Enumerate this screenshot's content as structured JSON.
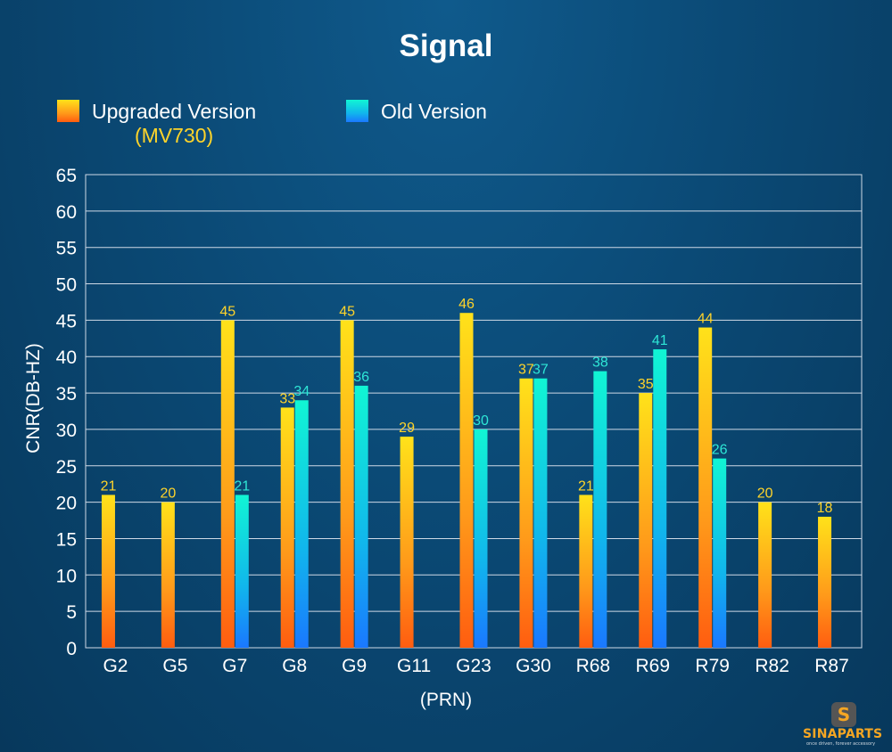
{
  "brand": {
    "name": "SINAPARTS",
    "tagline": "once driven, forever accessory",
    "colors": {
      "accent": "#f5a623"
    }
  },
  "chart_data": {
    "type": "bar",
    "title": "Signal",
    "xlabel": "(PRN)",
    "ylabel": "CNR(DB-HZ)",
    "ylim": [
      0,
      65
    ],
    "yticks": [
      0,
      5,
      10,
      15,
      20,
      25,
      30,
      35,
      40,
      45,
      50,
      55,
      60,
      65
    ],
    "grid": true,
    "legend_position": "top-left",
    "categories": [
      "G2",
      "G5",
      "G7",
      "G8",
      "G9",
      "G11",
      "G23",
      "G30",
      "R68",
      "R69",
      "R79",
      "R82",
      "R87"
    ],
    "series": [
      {
        "name": "Upgraded Version",
        "name_sub": "(MV730)",
        "color_top": "#ffe21a",
        "color_bottom": "#ff5d10",
        "label_color": "#ffd42a",
        "values": [
          21,
          20,
          45,
          33,
          45,
          29,
          46,
          37,
          21,
          35,
          44,
          20,
          18
        ]
      },
      {
        "name": "Old Version",
        "color_top": "#11f5d4",
        "color_bottom": "#1a78ff",
        "label_color": "#2ee6d6",
        "values": [
          null,
          null,
          21,
          34,
          36,
          null,
          30,
          37,
          38,
          41,
          26,
          null,
          null
        ]
      }
    ]
  }
}
